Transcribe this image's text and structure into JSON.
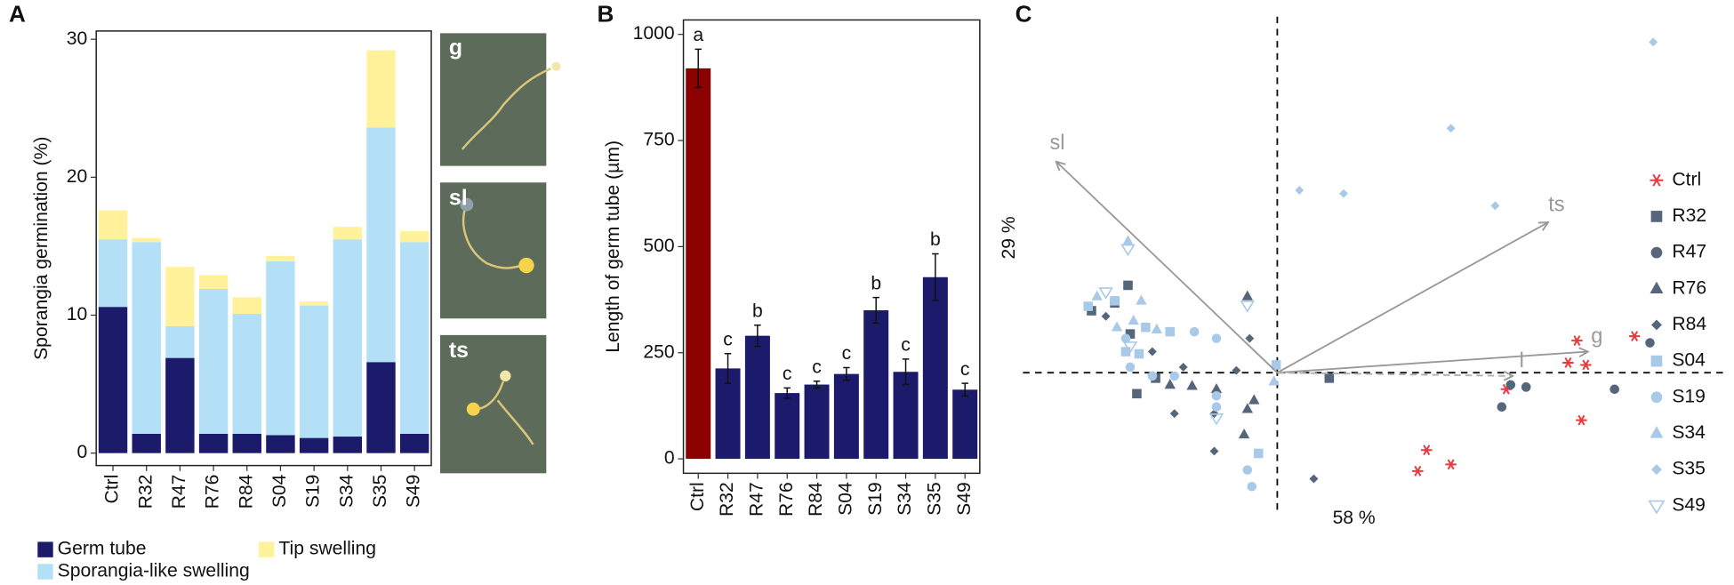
{
  "chart_data": [
    {
      "type": "stacked_bar",
      "panel": "A",
      "ylabel": "Sporangia germination (%)",
      "categories": [
        "Ctrl",
        "R32",
        "R47",
        "R76",
        "R84",
        "S04",
        "S19",
        "S34",
        "S35",
        "S49"
      ],
      "series": [
        {
          "name": "Germ tube",
          "color": "#1b1a6b",
          "values": [
            10.6,
            1.4,
            6.9,
            1.4,
            1.4,
            1.3,
            1.1,
            1.2,
            6.6,
            1.4
          ]
        },
        {
          "name": "Sporangia-like swelling",
          "color": "#b3e0f7",
          "values": [
            4.9,
            13.9,
            2.3,
            10.5,
            8.7,
            12.6,
            9.6,
            14.3,
            17.0,
            13.9
          ]
        },
        {
          "name": "Tip swelling",
          "color": "#fff29a",
          "values": [
            2.1,
            0.3,
            4.3,
            1.0,
            1.2,
            0.4,
            0.3,
            0.9,
            5.6,
            0.8
          ]
        }
      ],
      "ylim": [
        -0.9,
        30.6
      ],
      "yticks": [
        0,
        10,
        20,
        30
      ]
    },
    {
      "type": "bar",
      "panel": "B",
      "ylabel": "Length of germ tube (µm)",
      "categories": [
        "Ctrl",
        "R32",
        "R47",
        "R76",
        "R84",
        "S04",
        "S19",
        "S34",
        "S35",
        "S49"
      ],
      "values": [
        920,
        213,
        290,
        155,
        175,
        200,
        350,
        205,
        428,
        163
      ],
      "errors": [
        45,
        35,
        25,
        12,
        8,
        15,
        30,
        30,
        55,
        15
      ],
      "letters": [
        "a",
        "c",
        "b",
        "c",
        "c",
        "c",
        "b",
        "c",
        "b",
        "c"
      ],
      "colors": [
        "#8b0000",
        "#1b1a6b",
        "#1b1a6b",
        "#1b1a6b",
        "#1b1a6b",
        "#1b1a6b",
        "#1b1a6b",
        "#1b1a6b",
        "#1b1a6b",
        "#1b1a6b"
      ],
      "ylim": [
        -34,
        1034
      ],
      "yticks": [
        0,
        250,
        500,
        750,
        1000
      ]
    },
    {
      "type": "scatter",
      "panel": "C",
      "xlabel": "58 %",
      "ylabel": "29 %",
      "xlim": [
        -2.3,
        3.85
      ],
      "ylim": [
        -1.28,
        3.07
      ],
      "series": [
        {
          "name": "Ctrl",
          "color": "#e8393c",
          "marker": "asterisk",
          "x": [
            2.71,
            3.23,
            2.63,
            2.79,
            2.07,
            1.35,
            1.57,
            1.27,
            2.75
          ],
          "y": [
            0.29,
            0.33,
            0.09,
            0.07,
            -0.15,
            -0.7,
            -0.83,
            -0.89,
            -0.43
          ]
        },
        {
          "name": "R32",
          "color": "#56657a",
          "marker": "square",
          "x": [
            -1.35,
            -1.47,
            -1.33,
            -1.68,
            -1.1,
            -1.27,
            0.47
          ],
          "y": [
            0.79,
            0.63,
            0.35,
            0.56,
            -0.05,
            -0.19,
            -0.05
          ]
        },
        {
          "name": "R47",
          "color": "#56657a",
          "marker": "circle",
          "x": [
            3.37,
            2.03,
            2.25,
            2.11,
            3.05
          ],
          "y": [
            0.27,
            -0.31,
            -0.13,
            -0.11,
            -0.15
          ]
        },
        {
          "name": "R76",
          "color": "#56657a",
          "marker": "triangle",
          "x": [
            -0.27,
            -0.97,
            -0.77,
            -0.55,
            -0.27,
            -0.21,
            -0.3
          ],
          "y": [
            0.69,
            -0.11,
            -0.12,
            -0.15,
            -0.33,
            -0.25,
            -0.56
          ]
        },
        {
          "name": "R84",
          "color": "#56657a",
          "marker": "diamond",
          "x": [
            -0.25,
            -1.13,
            -0.85,
            -0.37,
            -0.57,
            -0.93,
            -0.57,
            0.33,
            -1.55
          ],
          "y": [
            0.31,
            0.19,
            0.05,
            0.02,
            -0.37,
            -0.37,
            -0.71,
            -0.96,
            0.51
          ]
        },
        {
          "name": "S04",
          "color": "#a9c9e8",
          "marker": "square",
          "x": [
            -1.47,
            -1.19,
            -1.37,
            -1.25,
            -1.71,
            -0.01,
            -0.17,
            -0.97
          ],
          "y": [
            0.65,
            0.41,
            0.19,
            0.17,
            0.6,
            0.07,
            -0.73,
            0.37
          ]
        },
        {
          "name": "S19",
          "color": "#a9c9e8",
          "marker": "circle",
          "x": [
            -1.33,
            -1.13,
            -0.75,
            -0.55,
            -0.93,
            -0.55,
            -0.55,
            -0.27,
            -0.23,
            -1.37
          ],
          "y": [
            0.05,
            -0.03,
            0.37,
            0.31,
            -0.03,
            -0.21,
            -0.31,
            -0.88,
            -1.03,
            0.31
          ]
        },
        {
          "name": "S34",
          "color": "#a9c9e8",
          "marker": "triangle",
          "x": [
            -1.35,
            -1.09,
            -1.3,
            -1.63,
            -1.45,
            -1.23,
            -0.03
          ],
          "y": [
            1.19,
            0.39,
            0.47,
            0.69,
            0.41,
            0.65,
            -0.08
          ]
        },
        {
          "name": "S35",
          "color": "#a9c9e8",
          "marker": "diamond",
          "x": [
            3.4,
            1.57,
            0.6,
            0.2,
            1.97
          ],
          "y": [
            2.99,
            2.21,
            1.62,
            1.65,
            1.51
          ]
        },
        {
          "name": "S49",
          "color": "#a9c9e8",
          "marker": "open-triangle-down",
          "x": [
            -1.35,
            -1.55,
            -0.27,
            -1.33,
            -0.55
          ],
          "y": [
            1.12,
            0.73,
            0.61,
            0.24,
            -0.41
          ]
        }
      ],
      "arrows": [
        {
          "name": "sl",
          "x": -2.0,
          "y": 1.91,
          "color": "#999999",
          "style": "solid"
        },
        {
          "name": "ts",
          "x": 2.45,
          "y": 1.36,
          "color": "#999999",
          "style": "solid"
        },
        {
          "name": "g",
          "x": 2.81,
          "y": 0.19,
          "color": "#999999",
          "style": "solid"
        },
        {
          "name": "l",
          "x": 2.13,
          "y": -0.03,
          "color": "#b0b0b0",
          "style": "dashed"
        }
      ]
    }
  ],
  "micrographs": [
    "g",
    "sl",
    "ts"
  ]
}
